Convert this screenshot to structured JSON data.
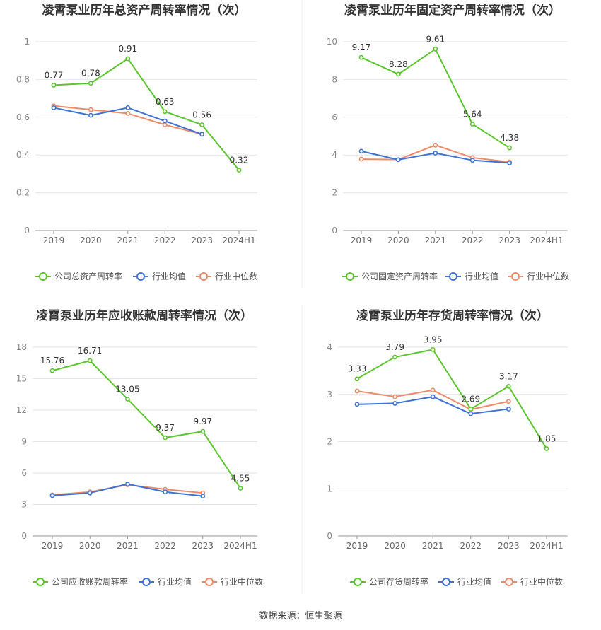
{
  "colors": {
    "company": "#5bc52e",
    "avg": "#3d72d6",
    "median": "#ee8a67",
    "grid": "#e6e6ee",
    "axis": "#9a9a9a",
    "text": "#555555"
  },
  "source_text": "数据来源：恒生聚源",
  "chart_data": [
    {
      "type": "line",
      "title": "凌霄泵业历年总资产周转率情况（次）",
      "categories": [
        "2019",
        "2020",
        "2021",
        "2022",
        "2023",
        "2024H1"
      ],
      "ylim": [
        0,
        1
      ],
      "yticks": [
        "0",
        "0.2",
        "0.4",
        "0.6",
        "0.8",
        "1"
      ],
      "ytick_values": [
        0,
        0.2,
        0.4,
        0.6,
        0.8,
        1
      ],
      "series": [
        {
          "name": "公司总资产周转率",
          "role": "company",
          "values": [
            0.77,
            0.78,
            0.91,
            0.63,
            0.56,
            0.32
          ],
          "labels": [
            "0.77",
            "0.78",
            "0.91",
            "0.63",
            "0.56",
            "0.32"
          ]
        },
        {
          "name": "行业均值",
          "role": "avg",
          "values": [
            0.65,
            0.61,
            0.65,
            0.58,
            0.51,
            null
          ]
        },
        {
          "name": "行业中位数",
          "role": "median",
          "values": [
            0.66,
            0.64,
            0.62,
            0.56,
            0.51,
            null
          ]
        }
      ],
      "legend": "bottom",
      "grid": true
    },
    {
      "type": "line",
      "title": "凌霄泵业历年固定资产周转率情况（次）",
      "categories": [
        "2019",
        "2020",
        "2021",
        "2022",
        "2023",
        "2024H1"
      ],
      "ylim": [
        0,
        10
      ],
      "yticks": [
        "0",
        "2",
        "4",
        "6",
        "8",
        "10"
      ],
      "ytick_values": [
        0,
        2,
        4,
        6,
        8,
        10
      ],
      "series": [
        {
          "name": "公司固定资产周转率",
          "role": "company",
          "values": [
            9.17,
            8.28,
            9.61,
            5.64,
            4.38,
            null
          ],
          "labels": [
            "9.17",
            "8.28",
            "9.61",
            "5.64",
            "4.38",
            ""
          ]
        },
        {
          "name": "行业均值",
          "role": "avg",
          "values": [
            4.2,
            3.75,
            4.1,
            3.72,
            3.58,
            null
          ]
        },
        {
          "name": "行业中位数",
          "role": "median",
          "values": [
            3.78,
            3.76,
            4.52,
            3.86,
            3.63,
            null
          ]
        }
      ],
      "legend": "bottom",
      "grid": true
    },
    {
      "type": "line",
      "title": "凌霄泵业历年应收账款周转率情况（次）",
      "categories": [
        "2019",
        "2020",
        "2021",
        "2022",
        "2023",
        "2024H1"
      ],
      "ylim": [
        0,
        18
      ],
      "yticks": [
        "0",
        "3",
        "6",
        "9",
        "12",
        "15",
        "18"
      ],
      "ytick_values": [
        0,
        3,
        6,
        9,
        12,
        15,
        18
      ],
      "series": [
        {
          "name": "公司应收账款周转率",
          "role": "company",
          "values": [
            15.76,
            16.71,
            13.05,
            9.37,
            9.97,
            4.55
          ],
          "labels": [
            "15.76",
            "16.71",
            "13.05",
            "9.37",
            "9.97",
            "4.55"
          ]
        },
        {
          "name": "行业均值",
          "role": "avg",
          "values": [
            3.85,
            4.1,
            4.95,
            4.2,
            3.8,
            null
          ]
        },
        {
          "name": "行业中位数",
          "role": "median",
          "values": [
            3.92,
            4.2,
            4.88,
            4.45,
            4.1,
            null
          ]
        }
      ],
      "legend": "bottom",
      "grid": true
    },
    {
      "type": "line",
      "title": "凌霄泵业历年存货周转率情况（次）",
      "categories": [
        "2019",
        "2020",
        "2021",
        "2022",
        "2023",
        "2024H1"
      ],
      "ylim": [
        0,
        4
      ],
      "yticks": [
        "0",
        "1",
        "2",
        "3",
        "4"
      ],
      "ytick_values": [
        0,
        1,
        2,
        3,
        4
      ],
      "series": [
        {
          "name": "公司存货周转率",
          "role": "company",
          "values": [
            3.33,
            3.79,
            3.95,
            2.69,
            3.17,
            1.85
          ],
          "labels": [
            "3.33",
            "3.79",
            "3.95",
            "2.69",
            "3.17",
            "1.85"
          ]
        },
        {
          "name": "行业均值",
          "role": "avg",
          "values": [
            2.79,
            2.81,
            2.95,
            2.59,
            2.69,
            null
          ]
        },
        {
          "name": "行业中位数",
          "role": "median",
          "values": [
            3.07,
            2.95,
            3.09,
            2.68,
            2.85,
            null
          ]
        }
      ],
      "legend": "bottom",
      "grid": true
    }
  ]
}
